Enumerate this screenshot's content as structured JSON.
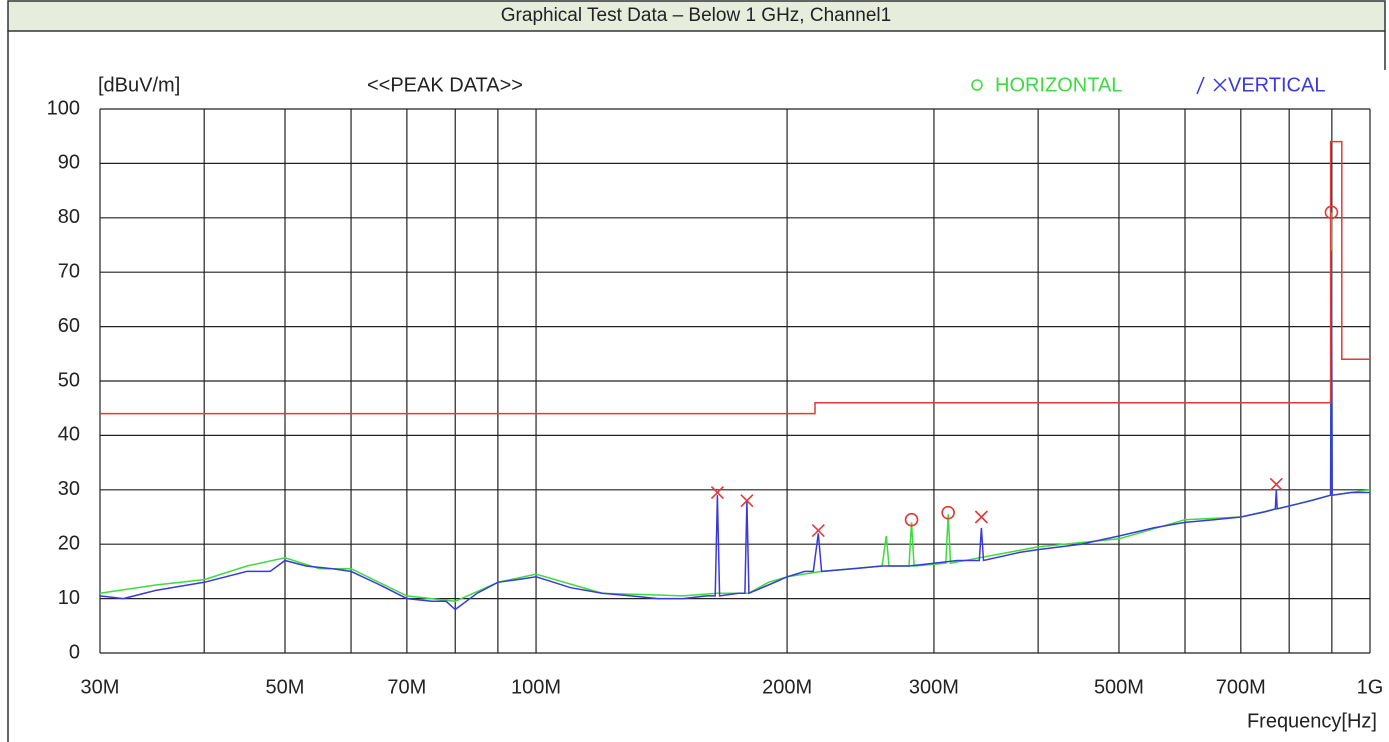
{
  "chart_data": {
    "type": "line",
    "title": "Graphical Test Data – Below 1 GHz, Channel1",
    "subtitle": "<<PEAK DATA>>",
    "ylabel": "[dBuV/m]",
    "xlabel": "Frequency[Hz]",
    "log_x": true,
    "grid": true,
    "xlim": [
      30,
      1000
    ],
    "ylim": [
      0,
      100
    ],
    "xticks": [
      {
        "value": 30,
        "label": "30M"
      },
      {
        "value": 50,
        "label": "50M"
      },
      {
        "value": 70,
        "label": "70M"
      },
      {
        "value": 100,
        "label": "100M"
      },
      {
        "value": 200,
        "label": "200M"
      },
      {
        "value": 300,
        "label": "300M"
      },
      {
        "value": 500,
        "label": "500M"
      },
      {
        "value": 700,
        "label": "700M"
      },
      {
        "value": 1000,
        "label": "1G"
      }
    ],
    "xminor": [
      40,
      60,
      80,
      90,
      400,
      600,
      800,
      900
    ],
    "yticks": [
      0,
      10,
      20,
      30,
      40,
      50,
      60,
      70,
      80,
      90,
      100
    ],
    "limit": {
      "color": "#e03a3a",
      "x": [
        30,
        216,
        216,
        897,
        897,
        925,
        925,
        1000
      ],
      "values": [
        44,
        44,
        46,
        46,
        94,
        94,
        54,
        54
      ]
    },
    "series": [
      {
        "name": "HORIZONTAL",
        "color": "#3cdc3c",
        "marker": "circle",
        "x": [
          30,
          35,
          40,
          45,
          50,
          55,
          60,
          70,
          80,
          90,
          100,
          120,
          150,
          165,
          180,
          190,
          200,
          220,
          260,
          263,
          265,
          280,
          282,
          284,
          310,
          312,
          314,
          340,
          400,
          500,
          600,
          700,
          800,
          897,
          899,
          901,
          1000
        ],
        "values": [
          11,
          12.5,
          13.5,
          16,
          17.5,
          15.5,
          15.5,
          10.5,
          9.5,
          13,
          14.5,
          11,
          10.5,
          11,
          11,
          13,
          14,
          15,
          16,
          21.5,
          16,
          16,
          24,
          16,
          16.5,
          25.5,
          16.5,
          17.5,
          19.5,
          21,
          24.5,
          25,
          27,
          29,
          81,
          29,
          30
        ],
        "peaks": {
          "x": [
            282,
            312,
            899
          ],
          "values": [
            24.5,
            25.8,
            81
          ]
        }
      },
      {
        "name": "VERTICAL",
        "color": "#3a3adc",
        "marker": "cross",
        "x": [
          30,
          32,
          35,
          40,
          45,
          48,
          50,
          53,
          57,
          60,
          65,
          70,
          75,
          78,
          80,
          85,
          90,
          95,
          100,
          105,
          110,
          120,
          130,
          140,
          150,
          160,
          164,
          165,
          166,
          175,
          178,
          179,
          180,
          190,
          200,
          205,
          210,
          215,
          218,
          220,
          240,
          260,
          280,
          300,
          320,
          340,
          342,
          344,
          380,
          400,
          450,
          500,
          550,
          600,
          650,
          700,
          750,
          770,
          772,
          774,
          850,
          897,
          899,
          901,
          950,
          1000
        ],
        "values": [
          10.5,
          10,
          11.5,
          13,
          15,
          15,
          17,
          16,
          15.5,
          15,
          12.5,
          10,
          9.5,
          9.5,
          8,
          11,
          13,
          13.5,
          14,
          13,
          12,
          11,
          10.5,
          10,
          10,
          10.5,
          10.5,
          29,
          10.5,
          11,
          11,
          28,
          11,
          12.5,
          14,
          14.5,
          15,
          15,
          22,
          15,
          15.5,
          16,
          16,
          16.5,
          17,
          17,
          23,
          17,
          18.5,
          19,
          20,
          21.5,
          23,
          24,
          24.5,
          25,
          26,
          26.5,
          30,
          26.5,
          28,
          29,
          74,
          29,
          29.5,
          29.5
        ],
        "peaks": {
          "x": [
            165,
            179,
            218,
            342,
            772
          ],
          "values": [
            29.5,
            28,
            22.5,
            25,
            31
          ]
        }
      }
    ]
  }
}
